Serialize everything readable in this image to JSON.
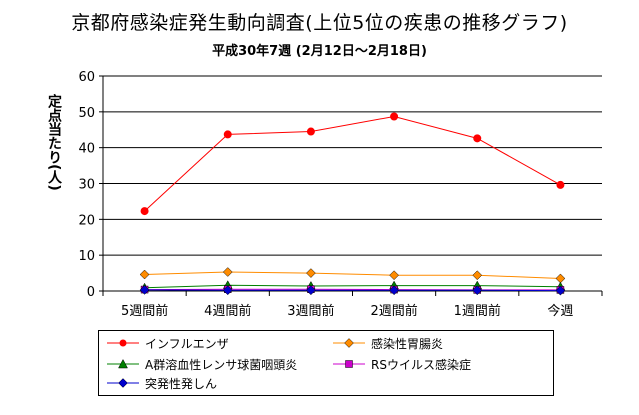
{
  "chart_data": {
    "type": "line",
    "title": "京都府感染症発生動向調査(上位5位の疾患の推移グラフ)",
    "subtitle": "平成30年7週 (2月12日～2月18日)",
    "ylabel": "定点当たり(人)",
    "xlabel": "",
    "categories": [
      "5週間前",
      "4週間前",
      "3週間前",
      "2週間前",
      "1週間前",
      "今週"
    ],
    "ylim": [
      0,
      60
    ],
    "yticks": [
      0,
      10,
      20,
      30,
      40,
      50,
      60
    ],
    "grid": true,
    "legend_position": "bottom",
    "series": [
      {
        "name": "インフルエンザ",
        "color": "#ff0000",
        "marker": "circle",
        "values": [
          22.3,
          43.7,
          44.5,
          48.7,
          42.6,
          29.6
        ]
      },
      {
        "name": "感染性胃腸炎",
        "color": "#ff8c00",
        "marker": "diamond",
        "values": [
          4.6,
          5.3,
          5.0,
          4.4,
          4.4,
          3.5
        ]
      },
      {
        "name": "A群溶血性レンサ球菌咽頭炎",
        "color": "#008000",
        "marker": "triangle",
        "values": [
          0.9,
          1.6,
          1.4,
          1.5,
          1.5,
          1.2
        ]
      },
      {
        "name": "RSウイルス感染症",
        "color": "#cc00cc",
        "marker": "square",
        "values": [
          0.4,
          0.5,
          0.5,
          0.4,
          0.3,
          0.3
        ]
      },
      {
        "name": "突発性発しん",
        "color": "#0000cc",
        "marker": "diamond",
        "values": [
          0.3,
          0.2,
          0.2,
          0.2,
          0.2,
          0.1
        ]
      }
    ]
  }
}
